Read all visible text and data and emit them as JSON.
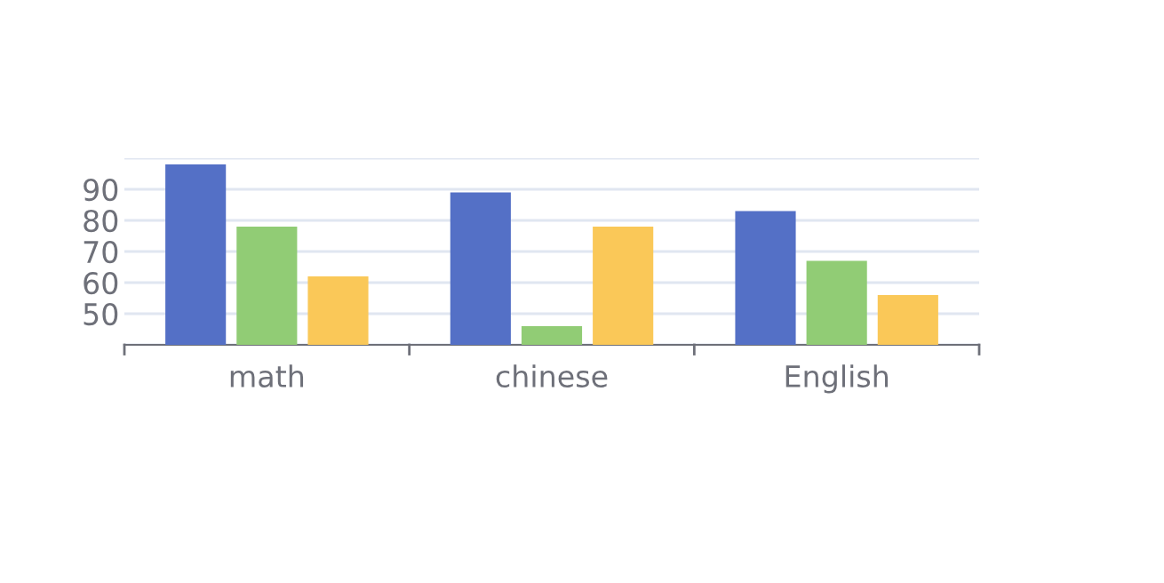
{
  "chart_data": {
    "type": "bar",
    "categories": [
      "math",
      "chinese",
      "English"
    ],
    "series": [
      {
        "color": "#5470c6",
        "values": [
          98,
          89,
          83
        ]
      },
      {
        "color": "#91cc75",
        "values": [
          78,
          46,
          67
        ]
      },
      {
        "color": "#fac858",
        "values": [
          62,
          78,
          56
        ]
      }
    ],
    "ylim": [
      40,
      100
    ],
    "yticks": [
      {
        "value": 40,
        "label": null
      },
      50,
      60,
      70,
      80,
      90,
      {
        "value": 100,
        "label": null
      }
    ],
    "grid": "y",
    "legend": false
  }
}
